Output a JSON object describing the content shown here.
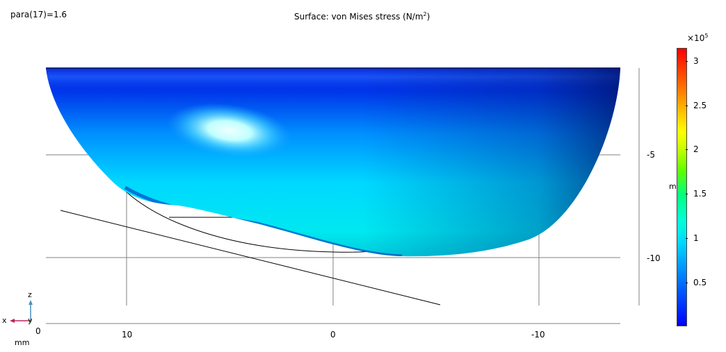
{
  "parameter_label": "para(17)=1.6",
  "title": {
    "prefix": "Surface: von Mises stress (N/m",
    "sup": "2",
    "suffix": ")"
  },
  "axis_ticks": {
    "x": [
      "10",
      "0",
      "-10"
    ],
    "z": [
      "-5",
      "-10"
    ],
    "origin": "0"
  },
  "axis_unit_side": "m",
  "axis_unit": "mm",
  "triad": {
    "x": "x",
    "y": "y",
    "z": "z"
  },
  "colorbar": {
    "exponent_base": "×10",
    "exponent_sup": "5",
    "ticks": [
      "3",
      "2.5",
      "2",
      "1.5",
      "1",
      "0.5"
    ],
    "colormap": "rainbow"
  },
  "colors": {
    "surface_low": "#0000d0",
    "surface_mid": "#00e8ff",
    "surface_high": "#e8ffff",
    "grid": "#808080"
  }
}
